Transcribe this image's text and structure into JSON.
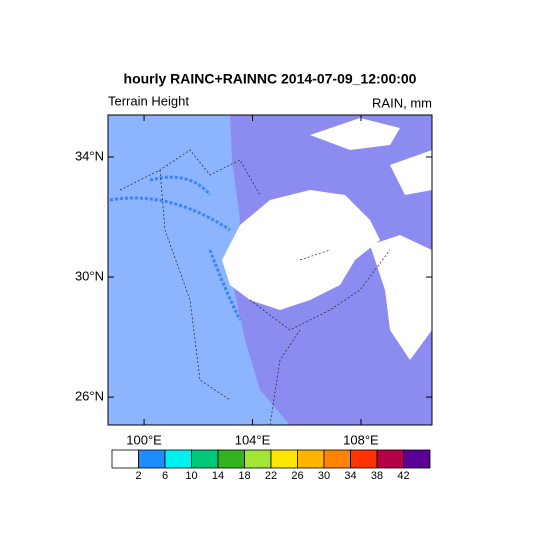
{
  "title": "hourly RAINC+RAINNC 2014-07-09_12:00:00",
  "left_string": "Terrain Height",
  "right_string": "RAIN, mm",
  "lat_range": [
    25.07,
    35.4
  ],
  "lon_range": [
    98.67,
    110.62
  ],
  "lat_ticks": [
    {
      "value": 34,
      "label": "34°N"
    },
    {
      "value": 30,
      "label": "30°N"
    },
    {
      "value": 26,
      "label": "26°N"
    }
  ],
  "lon_ticks": [
    {
      "value": 100,
      "label": "100°E"
    },
    {
      "value": 104,
      "label": "104°E"
    },
    {
      "value": 108,
      "label": "108°E"
    }
  ],
  "colorbar": {
    "levels": [
      2,
      6,
      10,
      14,
      18,
      22,
      26,
      30,
      34,
      38,
      42
    ],
    "colors": [
      "#ffffff",
      "#1e8cff",
      "#00f0f0",
      "#00c878",
      "#32b41e",
      "#a0e632",
      "#ffe600",
      "#ffb400",
      "#ff8200",
      "#ff3200",
      "#b40046",
      "#5a0096"
    ]
  }
}
